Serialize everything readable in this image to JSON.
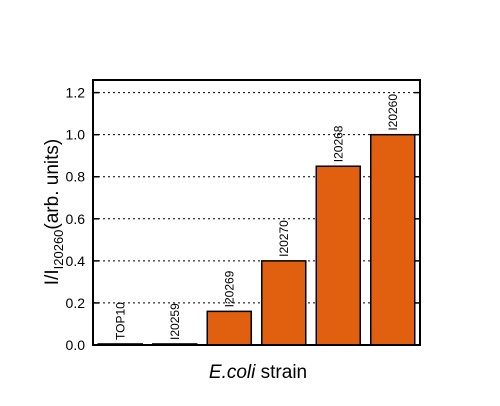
{
  "chart_data": {
    "type": "bar",
    "y_label": "I/I",
    "y_label_sub": "I20260",
    "y_label_unit": "(arb. units)",
    "x_label_italic": "E.coli",
    "x_label": "strain",
    "categories": [
      "TOP10",
      "I20259",
      "I20269",
      "I20270",
      "I20268",
      "I20260"
    ],
    "values": [
      0.005,
      0.005,
      0.16,
      0.4,
      0.85,
      1.0
    ],
    "color": "#e0600f",
    "ylim": [
      0,
      1.26
    ],
    "yticks": [
      {
        "value": 0,
        "label": "0.0"
      },
      0.2,
      0.4,
      0.6,
      0.8,
      {
        "value": 1,
        "label": "1.0"
      },
      1.2
    ],
    "grid": true
  }
}
